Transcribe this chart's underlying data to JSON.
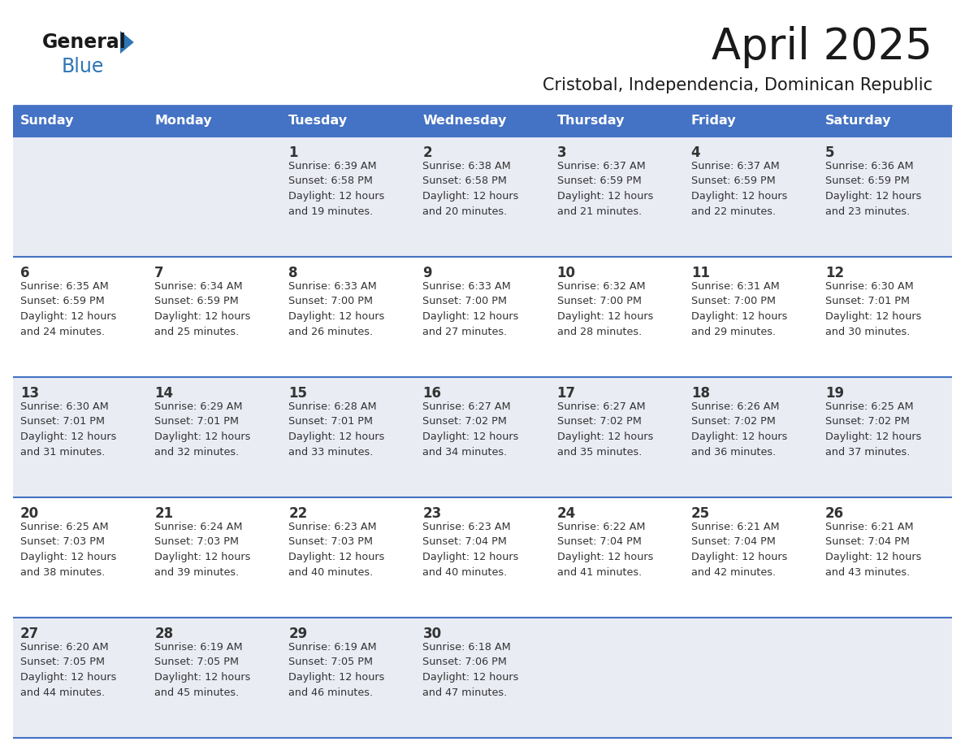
{
  "title": "April 2025",
  "subtitle": "Cristobal, Independencia, Dominican Republic",
  "days_of_week": [
    "Sunday",
    "Monday",
    "Tuesday",
    "Wednesday",
    "Thursday",
    "Friday",
    "Saturday"
  ],
  "header_bg": "#4472C4",
  "header_text_color": "#FFFFFF",
  "row_bg_light": "#EAECF4",
  "row_bg_white": "#FFFFFF",
  "cell_text_color": "#333333",
  "grid_line_color": "#4472C4",
  "title_color": "#1a1a1a",
  "subtitle_color": "#1a1a1a",
  "logo_general_color": "#1a1a1a",
  "logo_blue_color": "#2E75B6",
  "logo_triangle_color": "#2E75B6",
  "calendar_data": [
    [
      {
        "day": null,
        "info": null
      },
      {
        "day": null,
        "info": null
      },
      {
        "day": 1,
        "info": "Sunrise: 6:39 AM\nSunset: 6:58 PM\nDaylight: 12 hours\nand 19 minutes."
      },
      {
        "day": 2,
        "info": "Sunrise: 6:38 AM\nSunset: 6:58 PM\nDaylight: 12 hours\nand 20 minutes."
      },
      {
        "day": 3,
        "info": "Sunrise: 6:37 AM\nSunset: 6:59 PM\nDaylight: 12 hours\nand 21 minutes."
      },
      {
        "day": 4,
        "info": "Sunrise: 6:37 AM\nSunset: 6:59 PM\nDaylight: 12 hours\nand 22 minutes."
      },
      {
        "day": 5,
        "info": "Sunrise: 6:36 AM\nSunset: 6:59 PM\nDaylight: 12 hours\nand 23 minutes."
      }
    ],
    [
      {
        "day": 6,
        "info": "Sunrise: 6:35 AM\nSunset: 6:59 PM\nDaylight: 12 hours\nand 24 minutes."
      },
      {
        "day": 7,
        "info": "Sunrise: 6:34 AM\nSunset: 6:59 PM\nDaylight: 12 hours\nand 25 minutes."
      },
      {
        "day": 8,
        "info": "Sunrise: 6:33 AM\nSunset: 7:00 PM\nDaylight: 12 hours\nand 26 minutes."
      },
      {
        "day": 9,
        "info": "Sunrise: 6:33 AM\nSunset: 7:00 PM\nDaylight: 12 hours\nand 27 minutes."
      },
      {
        "day": 10,
        "info": "Sunrise: 6:32 AM\nSunset: 7:00 PM\nDaylight: 12 hours\nand 28 minutes."
      },
      {
        "day": 11,
        "info": "Sunrise: 6:31 AM\nSunset: 7:00 PM\nDaylight: 12 hours\nand 29 minutes."
      },
      {
        "day": 12,
        "info": "Sunrise: 6:30 AM\nSunset: 7:01 PM\nDaylight: 12 hours\nand 30 minutes."
      }
    ],
    [
      {
        "day": 13,
        "info": "Sunrise: 6:30 AM\nSunset: 7:01 PM\nDaylight: 12 hours\nand 31 minutes."
      },
      {
        "day": 14,
        "info": "Sunrise: 6:29 AM\nSunset: 7:01 PM\nDaylight: 12 hours\nand 32 minutes."
      },
      {
        "day": 15,
        "info": "Sunrise: 6:28 AM\nSunset: 7:01 PM\nDaylight: 12 hours\nand 33 minutes."
      },
      {
        "day": 16,
        "info": "Sunrise: 6:27 AM\nSunset: 7:02 PM\nDaylight: 12 hours\nand 34 minutes."
      },
      {
        "day": 17,
        "info": "Sunrise: 6:27 AM\nSunset: 7:02 PM\nDaylight: 12 hours\nand 35 minutes."
      },
      {
        "day": 18,
        "info": "Sunrise: 6:26 AM\nSunset: 7:02 PM\nDaylight: 12 hours\nand 36 minutes."
      },
      {
        "day": 19,
        "info": "Sunrise: 6:25 AM\nSunset: 7:02 PM\nDaylight: 12 hours\nand 37 minutes."
      }
    ],
    [
      {
        "day": 20,
        "info": "Sunrise: 6:25 AM\nSunset: 7:03 PM\nDaylight: 12 hours\nand 38 minutes."
      },
      {
        "day": 21,
        "info": "Sunrise: 6:24 AM\nSunset: 7:03 PM\nDaylight: 12 hours\nand 39 minutes."
      },
      {
        "day": 22,
        "info": "Sunrise: 6:23 AM\nSunset: 7:03 PM\nDaylight: 12 hours\nand 40 minutes."
      },
      {
        "day": 23,
        "info": "Sunrise: 6:23 AM\nSunset: 7:04 PM\nDaylight: 12 hours\nand 40 minutes."
      },
      {
        "day": 24,
        "info": "Sunrise: 6:22 AM\nSunset: 7:04 PM\nDaylight: 12 hours\nand 41 minutes."
      },
      {
        "day": 25,
        "info": "Sunrise: 6:21 AM\nSunset: 7:04 PM\nDaylight: 12 hours\nand 42 minutes."
      },
      {
        "day": 26,
        "info": "Sunrise: 6:21 AM\nSunset: 7:04 PM\nDaylight: 12 hours\nand 43 minutes."
      }
    ],
    [
      {
        "day": 27,
        "info": "Sunrise: 6:20 AM\nSunset: 7:05 PM\nDaylight: 12 hours\nand 44 minutes."
      },
      {
        "day": 28,
        "info": "Sunrise: 6:19 AM\nSunset: 7:05 PM\nDaylight: 12 hours\nand 45 minutes."
      },
      {
        "day": 29,
        "info": "Sunrise: 6:19 AM\nSunset: 7:05 PM\nDaylight: 12 hours\nand 46 minutes."
      },
      {
        "day": 30,
        "info": "Sunrise: 6:18 AM\nSunset: 7:06 PM\nDaylight: 12 hours\nand 47 minutes."
      },
      {
        "day": null,
        "info": null
      },
      {
        "day": null,
        "info": null
      },
      {
        "day": null,
        "info": null
      }
    ]
  ]
}
